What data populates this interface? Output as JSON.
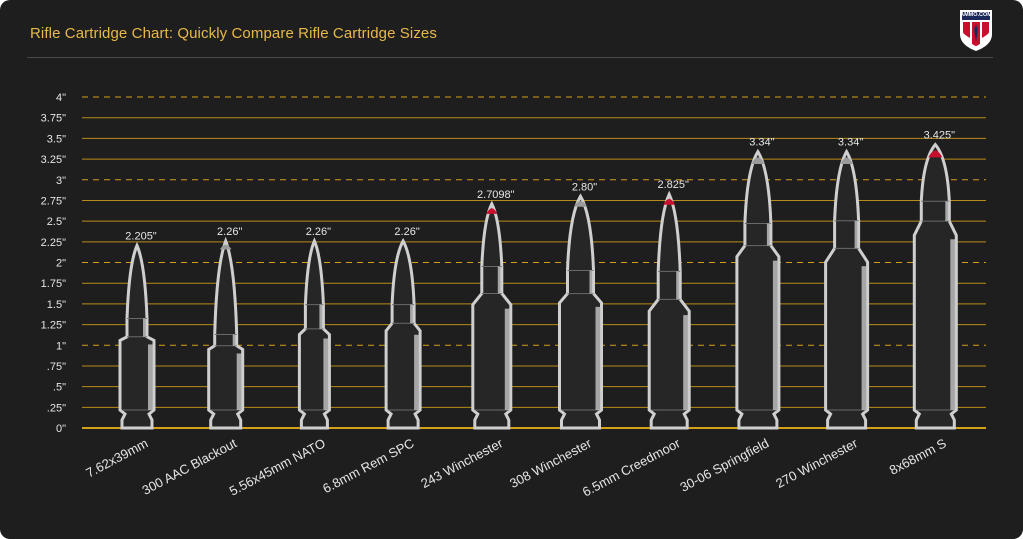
{
  "page": {
    "title": "Rifle Cartridge Chart: Quickly Compare Rifle Cartridge Sizes",
    "logo_text": "AMMO.COM"
  },
  "colors": {
    "background": "#1e1e1e",
    "title": "#e8b84a",
    "gridline": "#d4a017",
    "cartridge_outline": "#cfcfcf",
    "cartridge_fill": "#262626",
    "tip_red": "#c8102e",
    "tip_gray": "#9a9a9a"
  },
  "chart_data": {
    "type": "bar",
    "title": "Rifle Cartridge Chart: Quickly Compare Rifle Cartridge Sizes",
    "xlabel": "",
    "ylabel": "",
    "ylim": [
      0,
      4
    ],
    "y_ticks": [
      0,
      0.25,
      0.5,
      0.75,
      1,
      1.25,
      1.5,
      1.75,
      2,
      2.25,
      2.5,
      2.75,
      3,
      3.25,
      3.5,
      3.75,
      4
    ],
    "y_tick_labels": [
      "0\"",
      ".25\"",
      ".5\"",
      ".75\"",
      "1\"",
      "1.25\"",
      "1.5\"",
      "1.75\"",
      "2\"",
      "2.25\"",
      "2.5\"",
      "2.75\"",
      "3\"",
      "3.25\"",
      "3.5\"",
      "3.75\"",
      "4\""
    ],
    "dashed_ticks": [
      1,
      2,
      3,
      4
    ],
    "grid": true,
    "categories": [
      "7.62x39mm",
      "300 AAC Blackout",
      "5.56x45mm NATO",
      "6.8mm Rem SPC",
      "243 Winchester",
      "308 Winchester",
      "6.5mm Creedmoor",
      "30-06 Springfield",
      "270 Winchester",
      "8x68mm S"
    ],
    "values": [
      2.205,
      2.26,
      2.26,
      2.26,
      2.7098,
      2.8,
      2.825,
      3.34,
      3.34,
      3.425
    ],
    "value_labels": [
      "2.205\"",
      "2.26\"",
      "2.26\"",
      "2.26\"",
      "2.7098\"",
      "2.80\"",
      "2.825\"",
      "3.34\"",
      "3.34\"",
      "3.425\""
    ],
    "tip_colors": [
      "none",
      "gray",
      "none",
      "none",
      "red",
      "gray",
      "red",
      "gray",
      "gray",
      "red"
    ]
  }
}
